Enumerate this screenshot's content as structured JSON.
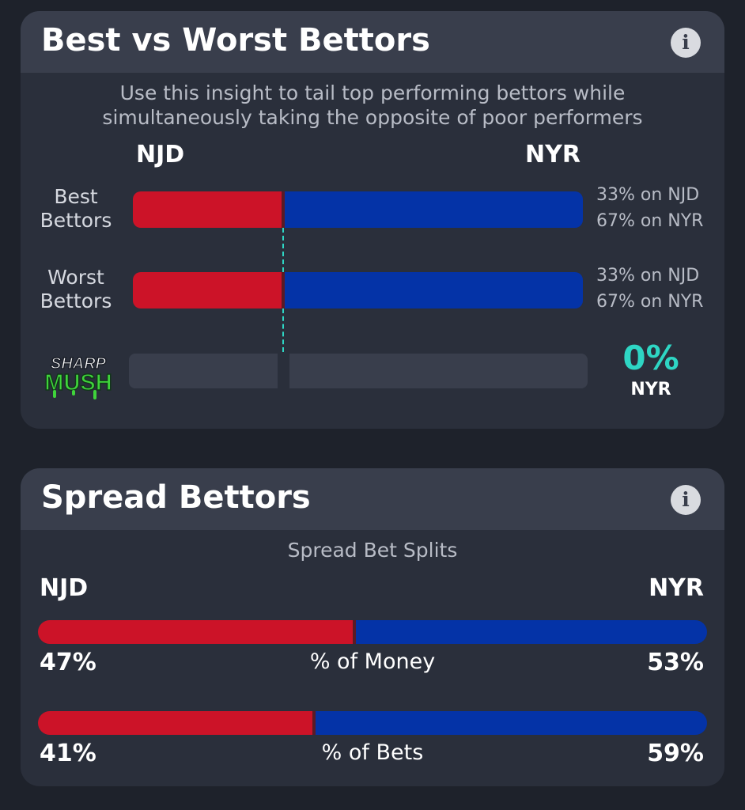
{
  "best_worst": {
    "title": "Best vs Worst Bettors",
    "subtitle_line1": "Use this insight to tail top performing bettors while",
    "subtitle_line2": "simultaneously taking the opposite of poor performers",
    "team_left": "NJD",
    "team_right": "NYR",
    "rows": [
      {
        "label_line1": "Best",
        "label_line2": "Bettors",
        "left_pct": 33,
        "right_pct": 67,
        "note_left": "33% on NJD",
        "note_right": "67% on NYR"
      },
      {
        "label_line1": "Worst",
        "label_line2": "Bettors",
        "left_pct": 33,
        "right_pct": 67,
        "note_left": "33% on NJD",
        "note_right": "67% on NYR"
      }
    ],
    "sharp": {
      "logo_top": "SHARP",
      "logo_bottom": "MUSH",
      "value": "0%",
      "team": "NYR"
    }
  },
  "spread": {
    "title": "Spread Bettors",
    "subtitle": "Spread Bet Splits",
    "team_left": "NJD",
    "team_right": "NYR",
    "rows": [
      {
        "label": "% of Money",
        "left_pct": 47,
        "right_pct": 53,
        "left_text": "47%",
        "right_text": "53%"
      },
      {
        "label": "% of Bets",
        "left_pct": 41,
        "right_pct": 59,
        "left_text": "41%",
        "right_text": "59%"
      }
    ]
  },
  "colors": {
    "njd": "#cc1328",
    "nyr": "#0433a7",
    "accent": "#2ed6c4",
    "logo_green": "#3fd43b"
  }
}
